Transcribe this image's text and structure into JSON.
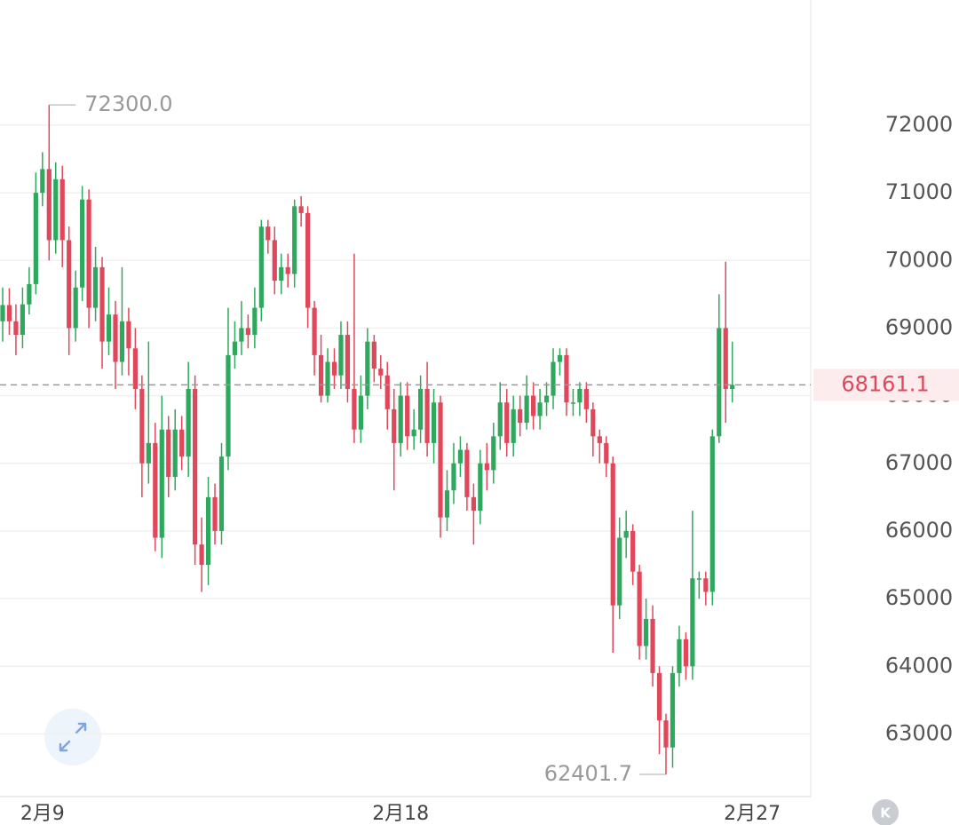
{
  "chart_data": {
    "type": "candlestick",
    "categories": [
      null,
      null,
      null,
      null,
      null,
      null,
      "2月9",
      null,
      null,
      null,
      null,
      null,
      null,
      null,
      null,
      null,
      null,
      null,
      null,
      null,
      null,
      null,
      null,
      null,
      null,
      null,
      null,
      null,
      null,
      null,
      null,
      null,
      null,
      null,
      null,
      null,
      null,
      null,
      null,
      null,
      null,
      null,
      null,
      null,
      null,
      null,
      null,
      null,
      null,
      null,
      null,
      null,
      null,
      null,
      null,
      null,
      null,
      null,
      null,
      null,
      "2月18",
      null,
      null,
      null,
      null,
      null,
      null,
      null,
      null,
      null,
      null,
      null,
      null,
      null,
      null,
      null,
      null,
      null,
      null,
      null,
      null,
      null,
      null,
      null,
      null,
      null,
      null,
      null,
      null,
      null,
      null,
      null,
      null,
      null,
      null,
      null,
      null,
      null,
      null,
      null,
      null,
      null,
      null,
      null,
      null,
      null,
      null,
      null,
      null,
      null,
      null,
      null,
      null,
      "2月27"
    ],
    "open": [
      69100,
      69340,
      69100,
      68900,
      69350,
      69650,
      71000,
      71350,
      70300,
      71200,
      70300,
      69000,
      69600,
      70900,
      69300,
      69900,
      68800,
      69200,
      68500,
      69100,
      68700,
      68100,
      67000,
      67300,
      65900,
      67500,
      66800,
      67500,
      67100,
      68100,
      65800,
      65500,
      66500,
      66000,
      67100,
      68600,
      68800,
      69000,
      68900,
      69300,
      70500,
      70300,
      69700,
      69900,
      69800,
      70800,
      70700,
      69300,
      68600,
      68000,
      68500,
      68300,
      68900,
      68100,
      67500,
      68000,
      68800,
      68400,
      68300,
      67800,
      67300,
      68000,
      67400,
      67500,
      68100,
      67300,
      67900,
      66200,
      66600,
      67000,
      67200,
      66500,
      66300,
      67000,
      66900,
      67400,
      67900,
      67300,
      67800,
      67600,
      68000,
      67700,
      67900,
      68000,
      68500,
      68600,
      67900,
      67900,
      68100,
      67800,
      67400,
      67300,
      67000,
      64900,
      65900,
      66000,
      65400,
      64300,
      64700,
      63900,
      63200,
      62800,
      63900,
      64400,
      64000,
      65300,
      65300,
      65100,
      67400,
      69000,
      68100,
      null,
      null,
      null
    ],
    "high": [
      69600,
      69590,
      69350,
      69600,
      69900,
      71300,
      71600,
      72300,
      71450,
      71400,
      70500,
      69850,
      71100,
      71050,
      70200,
      70050,
      69600,
      69400,
      69900,
      69300,
      69000,
      68300,
      68800,
      67600,
      68000,
      67700,
      67800,
      67700,
      68500,
      68300,
      66200,
      66800,
      66700,
      67300,
      69300,
      69100,
      69400,
      69200,
      69600,
      70600,
      70600,
      70500,
      70100,
      70100,
      70900,
      70950,
      70800,
      69400,
      68900,
      68700,
      68700,
      69100,
      69100,
      70100,
      68300,
      69000,
      68900,
      68600,
      68500,
      68100,
      68200,
      68200,
      67800,
      68300,
      68500,
      68100,
      68000,
      66900,
      67300,
      67400,
      67300,
      66700,
      67200,
      67300,
      67600,
      68200,
      68100,
      68000,
      68000,
      68300,
      68200,
      68100,
      68200,
      68700,
      68700,
      68700,
      68100,
      68200,
      68200,
      67900,
      67500,
      67400,
      67100,
      66200,
      66300,
      66100,
      65500,
      65000,
      64900,
      64000,
      63300,
      64000,
      64600,
      64500,
      66300,
      65400,
      65400,
      67500,
      69500,
      69980,
      68800,
      null,
      null,
      null
    ],
    "low": [
      68800,
      68900,
      68600,
      68700,
      69200,
      69500,
      70800,
      70000,
      70100,
      69900,
      68600,
      68800,
      69400,
      69000,
      69100,
      68400,
      68600,
      68100,
      68300,
      68300,
      67800,
      66500,
      66700,
      65700,
      65600,
      66500,
      66600,
      66900,
      66800,
      65500,
      65100,
      65200,
      65800,
      65800,
      66900,
      68400,
      68600,
      68700,
      68700,
      69100,
      70100,
      69500,
      69500,
      69600,
      69600,
      70500,
      69000,
      68300,
      67900,
      67900,
      68100,
      68100,
      67900,
      67300,
      67300,
      67800,
      68200,
      68100,
      67500,
      66600,
      67100,
      67200,
      67200,
      67300,
      67100,
      67000,
      65900,
      66000,
      66400,
      66800,
      66300,
      65800,
      66100,
      66600,
      66700,
      67200,
      67100,
      67100,
      67400,
      67500,
      67500,
      67500,
      67700,
      67800,
      68300,
      67700,
      67700,
      67700,
      67600,
      67100,
      67000,
      66800,
      64200,
      64700,
      65600,
      65200,
      64100,
      64100,
      63700,
      62700,
      62401.7,
      62500,
      63700,
      63800,
      63800,
      65000,
      64900,
      64900,
      67300,
      67600,
      67900,
      null,
      null,
      null
    ],
    "close": [
      69340,
      69100,
      68900,
      69350,
      69650,
      71000,
      71350,
      70300,
      71200,
      70300,
      69000,
      69600,
      70900,
      69300,
      69900,
      68800,
      69200,
      68500,
      69100,
      68700,
      68100,
      67000,
      67300,
      65900,
      67500,
      66800,
      67500,
      67100,
      68100,
      65800,
      65500,
      66500,
      66000,
      67100,
      68600,
      68800,
      69000,
      68900,
      69300,
      70500,
      70300,
      69700,
      69900,
      69800,
      70800,
      70700,
      69300,
      68600,
      68000,
      68500,
      68300,
      68900,
      68100,
      67500,
      68000,
      68800,
      68400,
      68300,
      67800,
      67300,
      68000,
      67400,
      67500,
      68100,
      67300,
      67900,
      66200,
      66600,
      67000,
      67200,
      66500,
      66300,
      67000,
      66900,
      67400,
      67900,
      67300,
      67800,
      67600,
      68000,
      67700,
      67900,
      68000,
      68500,
      68600,
      67900,
      67900,
      68100,
      67800,
      67400,
      67300,
      67000,
      64900,
      65900,
      66000,
      65400,
      64300,
      64700,
      63900,
      63200,
      62800,
      63900,
      64400,
      64000,
      65300,
      65300,
      65100,
      67400,
      69000,
      68100,
      68161.1,
      null,
      null,
      null
    ],
    "up_color": "#2ea85c",
    "down_color": "#e0475a",
    "high_label": "72300.0",
    "low_label": "62401.7",
    "last_price": 68161.1,
    "ylim": [
      62100,
      73850
    ],
    "yticks": [
      63000,
      64000,
      65000,
      66000,
      67000,
      68000,
      69000,
      70000,
      71000,
      72000
    ],
    "grid": true
  }
}
